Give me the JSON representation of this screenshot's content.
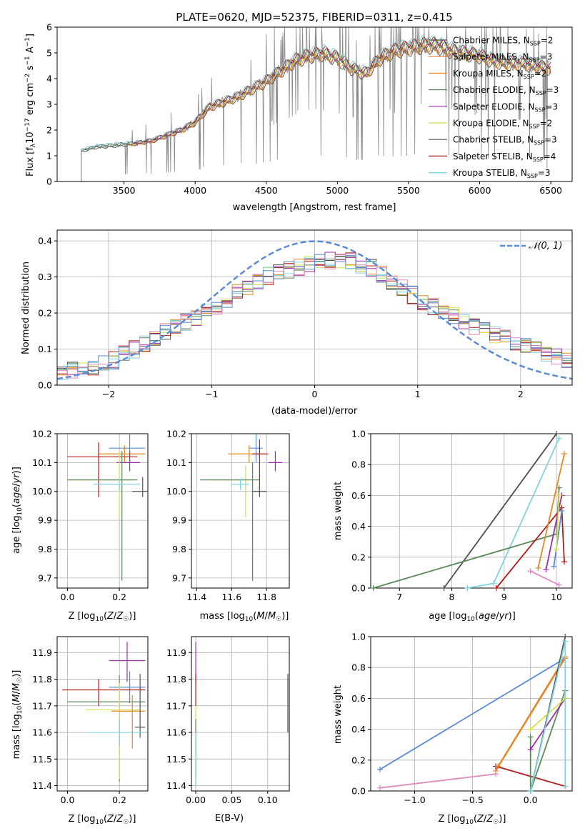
{
  "figure_title": "PLATE=0620, MJD=52375, FIBERID=0311, z=0.415",
  "series_colors": [
    "#4d4d4d",
    "#e8823a",
    "#e58a1f",
    "#5a8a5a",
    "#9b2fb0",
    "#d6e04a",
    "#555555",
    "#b01c1c",
    "#7fd4e0"
  ],
  "chart_data": [
    {
      "type": "line",
      "title": "PLATE=0620, MJD=52375, FIBERID=0311, z=0.415",
      "xlabel": "wavelength [Angstrom, rest frame]",
      "ylabel": "Flux [f_λ 10^-17 erg cm^-2 s^-1 A^-1]",
      "xlim": [
        3030,
        6650
      ],
      "ylim": [
        0,
        6
      ],
      "xticks": [
        3500,
        4000,
        4500,
        5000,
        5500,
        6000,
        6500
      ],
      "yticks": [
        0,
        1,
        2,
        3,
        4,
        5,
        6
      ],
      "data_color": "#888888",
      "continuum_x": [
        3200,
        3300,
        3400,
        3500,
        3600,
        3700,
        3800,
        3900,
        4000,
        4100,
        4200,
        4300,
        4400,
        4500,
        4600,
        4700,
        4800,
        4900,
        5000,
        5100,
        5200,
        5300,
        5400,
        5500,
        5600,
        5700,
        5800,
        5900,
        6000,
        6100,
        6200,
        6300,
        6400,
        6500
      ],
      "continuum_y": [
        1.2,
        1.35,
        1.4,
        1.45,
        1.5,
        1.6,
        1.8,
        2.0,
        2.3,
        2.9,
        3.1,
        3.3,
        3.6,
        3.9,
        4.3,
        4.7,
        4.9,
        5.0,
        4.8,
        4.4,
        4.2,
        4.8,
        5.1,
        5.2,
        5.3,
        5.3,
        5.1,
        5.0,
        4.9,
        4.7,
        4.6,
        4.6,
        4.5,
        4.4
      ],
      "legend_location": "upper right",
      "legend": [
        {
          "label": "Chabrier MILES, N_SSP=2",
          "prefix": "Chabrier MILES, N",
          "sub": "SSP",
          "suffix": "=2",
          "color": "#4d4d4d"
        },
        {
          "label": "Salpeter MILES, N_SSP=3",
          "prefix": "Salpeter MILES, N",
          "sub": "SSP",
          "suffix": "=3",
          "color": "#e8823a"
        },
        {
          "label": "Kroupa MILES, N_SSP=2",
          "prefix": "Kroupa MILES, N",
          "sub": "SSP",
          "suffix": "=2",
          "color": "#e58a1f"
        },
        {
          "label": "Chabrier ELODIE, N_SSP=3",
          "prefix": "Chabrier ELODIE, N",
          "sub": "SSP",
          "suffix": "=3",
          "color": "#5a8a5a"
        },
        {
          "label": "Salpeter ELODIE, N_SSP=3",
          "prefix": "Salpeter ELODIE, N",
          "sub": "SSP",
          "suffix": "=3",
          "color": "#9b2fb0"
        },
        {
          "label": "Kroupa ELODIE, N_SSP=2",
          "prefix": "Kroupa ELODIE, N",
          "sub": "SSP",
          "suffix": "=2",
          "color": "#d6e04a"
        },
        {
          "label": "Chabrier STELIB, N_SSP=3",
          "prefix": "Chabrier STELIB, N",
          "sub": "SSP",
          "suffix": "=3",
          "color": "#555555"
        },
        {
          "label": "Salpeter STELIB, N_SSP=4",
          "prefix": "Salpeter STELIB, N",
          "sub": "SSP",
          "suffix": "=4",
          "color": "#b01c1c"
        },
        {
          "label": "Kroupa STELIB, N_SSP=3",
          "prefix": "Kroupa STELIB, N",
          "sub": "SSP",
          "suffix": "=3",
          "color": "#7fd4e0"
        }
      ]
    },
    {
      "type": "line",
      "xlabel": "(data-model)/error",
      "ylabel": "Normed distribution",
      "xlim": [
        -2.5,
        2.5
      ],
      "ylim": [
        0,
        0.43
      ],
      "xticks": [
        -2,
        -1,
        0,
        1,
        2
      ],
      "yticks": [
        0.0,
        0.1,
        0.2,
        0.3,
        0.4
      ],
      "grid": true,
      "legend_location": "upper right",
      "reference": {
        "label": "𝒩(0, 1)",
        "mean": 0,
        "sigma": 1,
        "color": "#5b8bd6",
        "style": "dashed"
      },
      "histogram_bin_width": 0.1,
      "histogram_envelope_x": [
        -2.45,
        -2.0,
        -1.5,
        -1.0,
        -0.5,
        0.0,
        0.3,
        0.6,
        1.0,
        1.5,
        2.0,
        2.45
      ],
      "histogram_envelope_y": [
        0.035,
        0.06,
        0.14,
        0.21,
        0.3,
        0.34,
        0.35,
        0.32,
        0.24,
        0.17,
        0.11,
        0.07
      ],
      "histogram_colors": [
        "#5a8a5a",
        "#9b2fb0",
        "#e58a1f",
        "#d6e04a",
        "#555555",
        "#b01c1c",
        "#7fd4e0",
        "#e08ac0",
        "#5b8bd6"
      ]
    },
    {
      "type": "scatter",
      "xlabel": "Z [log10(Z/Z☉)]",
      "ylabel": "age [log10(age/yr)]",
      "xlim": [
        -0.04,
        0.31
      ],
      "ylim": [
        9.665,
        10.2
      ],
      "xticks": [
        0.0,
        0.2
      ],
      "yticks": [
        9.7,
        9.8,
        9.9,
        10.0,
        10.1,
        10.2
      ],
      "grid": true,
      "points": [
        {
          "x": 0.24,
          "y": 10.15,
          "xerr": [
            0.08,
            0.06
          ],
          "yerr": [
            0.05,
            0.05
          ],
          "color": "#5b8bd6"
        },
        {
          "x": 0.22,
          "y": 10.13,
          "xerr": [
            0.1,
            0.08
          ],
          "yerr": [
            0.03,
            0.03
          ],
          "color": "#e58a1f"
        },
        {
          "x": 0.12,
          "y": 10.12,
          "xerr": [
            0.12,
            0.15
          ],
          "yerr": [
            0.14,
            0.05
          ],
          "color": "#b01c1c"
        },
        {
          "x": 0.24,
          "y": 10.1,
          "xerr": [
            0.05,
            0.04
          ],
          "yerr": [
            0.03,
            0.04
          ],
          "color": "#9b2fb0"
        },
        {
          "x": 0.2,
          "y": 10.04,
          "xerr": [
            0.2,
            0.05
          ],
          "yerr": [
            0.13,
            0.1
          ],
          "color": "#d6e04a"
        },
        {
          "x": 0.21,
          "y": 10.04,
          "xerr": [
            0.21,
            0.06
          ],
          "yerr": [
            0.35,
            0.1
          ],
          "color": "#5a8a5a"
        },
        {
          "x": 0.2,
          "y": 10.025,
          "xerr": [
            0.1,
            0.08
          ],
          "yerr": [
            0.02,
            0.02
          ],
          "color": "#7fd4e0"
        },
        {
          "x": 0.29,
          "y": 10.0,
          "xerr": [
            0.04,
            0.02
          ],
          "yerr": [
            0.02,
            0.05
          ],
          "color": "#555555"
        }
      ]
    },
    {
      "type": "scatter",
      "xlabel": "mass [log10(M/M☉)]",
      "xlim": [
        11.37,
        11.93
      ],
      "ylim": [
        9.665,
        10.2
      ],
      "xticks": [
        11.4,
        11.6,
        11.8
      ],
      "yticks": [
        9.7,
        9.8,
        9.9,
        10.0,
        10.1,
        10.2
      ],
      "grid": true,
      "points": [
        {
          "x": 11.74,
          "y": 10.15,
          "xerr": [
            0.04,
            0.04
          ],
          "yerr": [
            0.05,
            0.05
          ],
          "color": "#5b8bd6"
        },
        {
          "x": 11.7,
          "y": 10.13,
          "xerr": [
            0.12,
            0.06
          ],
          "yerr": [
            0.03,
            0.03
          ],
          "color": "#e58a1f"
        },
        {
          "x": 11.76,
          "y": 10.13,
          "xerr": [
            0.04,
            0.05
          ],
          "yerr": [
            0.14,
            0.05
          ],
          "color": "#b01c1c"
        },
        {
          "x": 11.85,
          "y": 10.1,
          "xerr": [
            0.04,
            0.04
          ],
          "yerr": [
            0.03,
            0.04
          ],
          "color": "#9b2fb0"
        },
        {
          "x": 11.68,
          "y": 10.04,
          "xerr": [
            0.2,
            0.02
          ],
          "yerr": [
            0.13,
            0.05
          ],
          "color": "#d6e04a"
        },
        {
          "x": 11.72,
          "y": 10.04,
          "xerr": [
            0.3,
            0.04
          ],
          "yerr": [
            0.35,
            0.06
          ],
          "color": "#5a8a5a"
        },
        {
          "x": 11.65,
          "y": 10.025,
          "xerr": [
            0.05,
            0.05
          ],
          "yerr": [
            0.02,
            0.02
          ],
          "color": "#7fd4e0"
        },
        {
          "x": 11.76,
          "y": 10.0,
          "xerr": [
            0.04,
            0.04
          ],
          "yerr": [
            0.02,
            0.02
          ],
          "color": "#555555"
        }
      ]
    },
    {
      "type": "line",
      "xlabel": "age [log10(age/yr)]",
      "ylabel": "mass weight",
      "xlim": [
        6.45,
        10.3
      ],
      "ylim": [
        0,
        1.0
      ],
      "xticks": [
        7,
        8,
        9,
        10
      ],
      "yticks": [
        0.0,
        0.2,
        0.4,
        0.6,
        0.8,
        1.0
      ],
      "grid": true,
      "series": [
        {
          "color": "#4d4d4d",
          "x": [
            7.85,
            10.0
          ],
          "y": [
            0.0,
            1.0
          ]
        },
        {
          "color": "#7fd4e0",
          "x": [
            8.3,
            8.8,
            10.05
          ],
          "y": [
            0.0,
            0.03,
            0.97
          ]
        },
        {
          "color": "#5a8a5a",
          "x": [
            6.5,
            10.0,
            10.05
          ],
          "y": [
            0.0,
            0.35,
            0.65
          ]
        },
        {
          "color": "#b01c1c",
          "x": [
            8.85,
            10.1,
            10.15
          ],
          "y": [
            0.0,
            0.52,
            0.17
          ]
        },
        {
          "color": "#e58a1f",
          "x": [
            9.65,
            10.15
          ],
          "y": [
            0.13,
            0.87
          ]
        },
        {
          "color": "#9b2fb0",
          "x": [
            9.8,
            10.1
          ],
          "y": [
            0.12,
            0.6
          ]
        },
        {
          "color": "#e08ac0",
          "x": [
            9.5,
            10.05
          ],
          "y": [
            0.11,
            0.02
          ]
        },
        {
          "color": "#5b8bd6",
          "x": [
            9.95,
            10.1
          ],
          "y": [
            0.14,
            0.5
          ]
        },
        {
          "color": "#d6e04a",
          "x": [
            10.0,
            10.05
          ],
          "y": [
            0.25,
            0.6
          ]
        }
      ]
    },
    {
      "type": "scatter",
      "xlabel": "Z [log10(Z/Z☉)]",
      "ylabel": "mass [log10(M/M☉)]",
      "xlim": [
        -0.04,
        0.31
      ],
      "ylim": [
        11.38,
        11.96
      ],
      "xticks": [
        0.0,
        0.2
      ],
      "yticks": [
        11.4,
        11.5,
        11.6,
        11.7,
        11.8,
        11.9
      ],
      "grid": true,
      "points": [
        {
          "x": 0.23,
          "y": 11.87,
          "xerr": [
            0.07,
            0.07
          ],
          "yerr": [
            0.08,
            0.07
          ],
          "color": "#9b2fb0"
        },
        {
          "x": 0.24,
          "y": 11.77,
          "xerr": [
            0.08,
            0.06
          ],
          "yerr": [
            0.06,
            0.06
          ],
          "color": "#5b8bd6"
        },
        {
          "x": 0.12,
          "y": 11.76,
          "xerr": [
            0.14,
            0.18
          ],
          "yerr": [
            0.06,
            0.04
          ],
          "color": "#b01c1c"
        },
        {
          "x": 0.2,
          "y": 11.715,
          "xerr": [
            0.2,
            0.1
          ],
          "yerr": [
            0.3,
            0.1
          ],
          "color": "#5a8a5a"
        },
        {
          "x": 0.2,
          "y": 11.685,
          "xerr": [
            0.13,
            0.08
          ],
          "yerr": [
            0.26,
            0.1
          ],
          "color": "#d6e04a"
        },
        {
          "x": 0.25,
          "y": 11.68,
          "xerr": [
            0.08,
            0.05
          ],
          "yerr": [
            0.14,
            0.06
          ],
          "color": "#e58a1f"
        },
        {
          "x": 0.28,
          "y": 11.62,
          "xerr": [
            0.02,
            0.02
          ],
          "yerr": [
            0.04,
            0.2
          ],
          "color": "#555555"
        },
        {
          "x": 0.2,
          "y": 11.6,
          "xerr": [
            0.13,
            0.1
          ],
          "yerr": [
            0.05,
            0.05
          ],
          "color": "#7fd4e0"
        }
      ]
    },
    {
      "type": "scatter",
      "xlabel": "E(B-V)",
      "xlim": [
        -0.006,
        0.13
      ],
      "ylim": [
        11.38,
        11.96
      ],
      "xticks": [
        0.0,
        0.05,
        0.1
      ],
      "yticks": [
        11.4,
        11.5,
        11.6,
        11.7,
        11.8,
        11.9
      ],
      "grid": true,
      "points": [
        {
          "x": 0.0,
          "y": 11.87,
          "yerr": [
            0.08,
            0.07
          ],
          "color": "#9b2fb0"
        },
        {
          "x": 0.0,
          "y": 11.76,
          "yerr": [
            0.06,
            0.06
          ],
          "color": "#b01c1c"
        },
        {
          "x": 0.0,
          "y": 11.6,
          "yerr": [
            0.2,
            0.1
          ],
          "color": "#d6e04a"
        },
        {
          "x": 0.0,
          "y": 11.55,
          "yerr": [
            0.12,
            0.1
          ],
          "color": "#5a8a5a"
        },
        {
          "x": 0.0,
          "y": 11.5,
          "yerr": [
            0.1,
            0.1
          ],
          "color": "#7fd4e0"
        },
        {
          "x": 0.128,
          "y": 11.71,
          "yerr": [
            0.11,
            0.11
          ],
          "color": "#555555"
        }
      ]
    },
    {
      "type": "line",
      "xlabel": "Z [log10(Z/Z☉)]",
      "ylabel": "mass weight",
      "xlim": [
        -1.38,
        0.36
      ],
      "ylim": [
        0,
        1.0
      ],
      "xticks": [
        -1.0,
        -0.5,
        0.0
      ],
      "yticks": [
        0.0,
        0.2,
        0.4,
        0.6,
        0.8,
        1.0
      ],
      "grid": true,
      "series": [
        {
          "color": "#5b8bd6",
          "x": [
            -1.3,
            0.3
          ],
          "y": [
            0.14,
            0.86
          ]
        },
        {
          "color": "#e08ac0",
          "x": [
            -1.3,
            -0.3
          ],
          "y": [
            0.02,
            0.11
          ]
        },
        {
          "color": "#e8823a",
          "x": [
            -0.3,
            0.3
          ],
          "y": [
            0.13,
            0.86
          ]
        },
        {
          "color": "#b01c1c",
          "x": [
            -0.3,
            0.3
          ],
          "y": [
            0.16,
            0.03
          ]
        },
        {
          "color": "#e58a1f",
          "x": [
            -0.28,
            0.3
          ],
          "y": [
            0.16,
            0.87
          ]
        },
        {
          "color": "#4d4d4d",
          "x": [
            0.0,
            0.3
          ],
          "y": [
            0.0,
            1.0
          ]
        },
        {
          "color": "#5a8a5a",
          "x": [
            0.0,
            0.0,
            0.3
          ],
          "y": [
            0.35,
            0.0,
            0.65
          ]
        },
        {
          "color": "#9b2fb0",
          "x": [
            0.0,
            0.3
          ],
          "y": [
            0.27,
            0.6
          ]
        },
        {
          "color": "#d6e04a",
          "x": [
            0.0,
            0.3
          ],
          "y": [
            0.4,
            0.6
          ]
        },
        {
          "color": "#7fd4e0",
          "x": [
            0.0,
            0.3,
            0.3
          ],
          "y": [
            0.0,
            0.97,
            0.03
          ]
        }
      ]
    }
  ]
}
